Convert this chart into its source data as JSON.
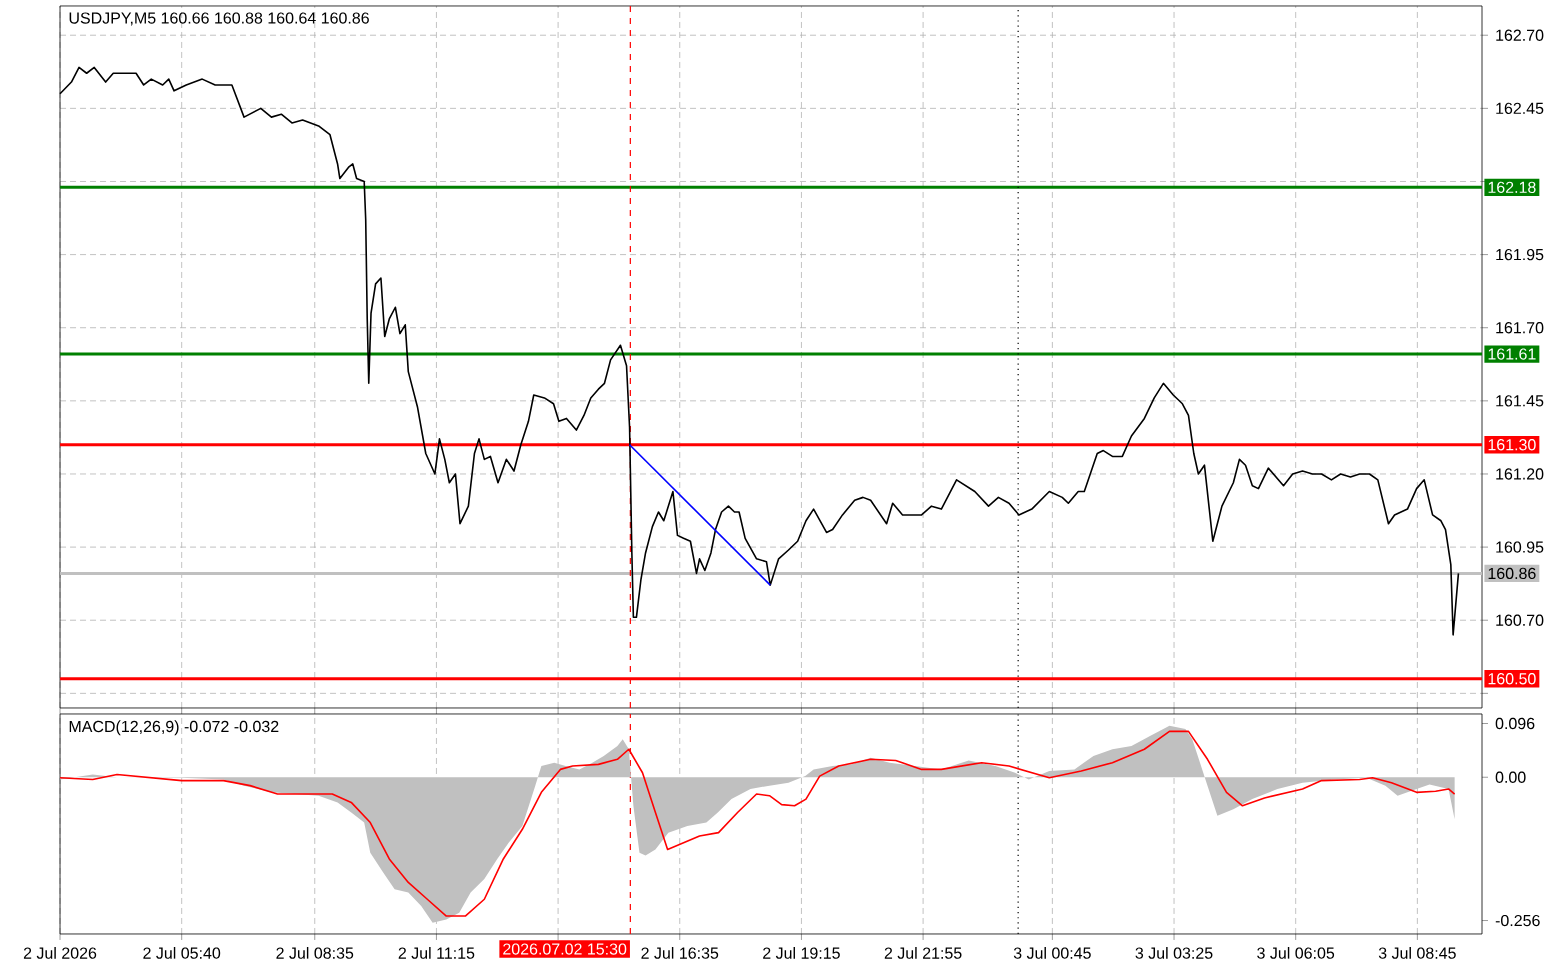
{
  "chart_data": [
    {
      "type": "line",
      "title": "USDJPY,M5  160.66 160.88 160.64 160.86",
      "series": [
        {
          "color": "#000000",
          "x": [
            "2026-07-02T03:00",
            "2026-07-02T03:15",
            "2026-07-02T03:25",
            "2026-07-02T03:35",
            "2026-07-02T03:45",
            "2026-07-02T04:00",
            "2026-07-02T04:10",
            "2026-07-02T04:25",
            "2026-07-02T04:40",
            "2026-07-02T04:50",
            "2026-07-02T05:00",
            "2026-07-02T05:15",
            "2026-07-02T05:23",
            "2026-07-02T05:30",
            "2026-07-02T05:46",
            "2026-07-02T06:07",
            "2026-07-02T06:24",
            "2026-07-02T06:46",
            "2026-07-02T07:02",
            "2026-07-02T07:24",
            "2026-07-02T07:38",
            "2026-07-02T07:51",
            "2026-07-02T08:05",
            "2026-07-02T08:19",
            "2026-07-02T08:40",
            "2026-07-02T08:55",
            "2026-07-02T09:05",
            "2026-07-02T09:08",
            "2026-07-02T09:20",
            "2026-07-02T09:25",
            "2026-07-02T09:30",
            "2026-07-02T09:40",
            "2026-07-02T09:42",
            "2026-07-02T09:44",
            "2026-07-02T09:46",
            "2026-07-02T09:49",
            "2026-07-02T09:55",
            "2026-07-02T10:02",
            "2026-07-02T10:07",
            "2026-07-02T10:13",
            "2026-07-02T10:21",
            "2026-07-02T10:27",
            "2026-07-02T10:34",
            "2026-07-02T10:38",
            "2026-07-02T10:50",
            "2026-07-02T11:01",
            "2026-07-02T11:13",
            "2026-07-02T11:19",
            "2026-07-02T11:26",
            "2026-07-02T11:32",
            "2026-07-02T11:40",
            "2026-07-02T11:46",
            "2026-07-02T11:57",
            "2026-07-02T12:05",
            "2026-07-02T12:11",
            "2026-07-02T12:18",
            "2026-07-02T12:26",
            "2026-07-02T12:36",
            "2026-07-02T12:47",
            "2026-07-02T12:57",
            "2026-07-02T13:06",
            "2026-07-02T13:16",
            "2026-07-02T13:23",
            "2026-07-02T13:37",
            "2026-07-02T13:49",
            "2026-07-02T13:56",
            "2026-07-02T14:06",
            "2026-07-02T14:19",
            "2026-07-02T14:29",
            "2026-07-02T14:38",
            "2026-07-02T14:48",
            "2026-07-02T14:56",
            "2026-07-02T15:04",
            "2026-07-02T15:17",
            "2026-07-02T15:25",
            "2026-07-02T15:29",
            "2026-07-02T15:32",
            "2026-07-02T15:34",
            "2026-07-02T15:38",
            "2026-07-02T15:44",
            "2026-07-02T15:50",
            "2026-07-02T15:59",
            "2026-07-02T16:07",
            "2026-07-02T16:14",
            "2026-07-02T16:26",
            "2026-07-02T16:32",
            "2026-07-02T16:40",
            "2026-07-02T16:49",
            "2026-07-02T16:57",
            "2026-07-02T17:01",
            "2026-07-02T17:08",
            "2026-07-02T17:16",
            "2026-07-02T17:22",
            "2026-07-02T17:30",
            "2026-07-02T17:39",
            "2026-07-02T17:47",
            "2026-07-02T17:53",
            "2026-07-02T18:01",
            "2026-07-02T18:16",
            "2026-07-02T18:29",
            "2026-07-02T18:34",
            "2026-07-02T18:45",
            "2026-07-02T18:58",
            "2026-07-02T19:10",
            "2026-07-02T19:21",
            "2026-07-02T19:31",
            "2026-07-02T19:48",
            "2026-07-02T19:56",
            "2026-07-02T20:09",
            "2026-07-02T20:25",
            "2026-07-02T20:36",
            "2026-07-02T20:46",
            "2026-07-02T21:07",
            "2026-07-02T21:15",
            "2026-07-02T21:28",
            "2026-07-02T21:40",
            "2026-07-02T21:53",
            "2026-07-02T22:06",
            "2026-07-02T22:19",
            "2026-07-02T22:39",
            "2026-07-02T23:03",
            "2026-07-02T23:21",
            "2026-07-02T23:34",
            "2026-07-02T23:48",
            "2026-07-03T00:01",
            "2026-07-03T00:18",
            "2026-07-03T00:41",
            "2026-07-03T00:58",
            "2026-07-03T01:06",
            "2026-07-03T01:19",
            "2026-07-03T01:27",
            "2026-07-03T01:44",
            "2026-07-03T01:52",
            "2026-07-03T02:04",
            "2026-07-03T02:17",
            "2026-07-03T02:29",
            "2026-07-03T02:46",
            "2026-07-03T02:59",
            "2026-07-03T03:11",
            "2026-07-03T03:24",
            "2026-07-03T03:36",
            "2026-07-03T03:44",
            "2026-07-03T03:51",
            "2026-07-03T03:57",
            "2026-07-03T04:05",
            "2026-07-03T04:16",
            "2026-07-03T04:28",
            "2026-07-03T04:43",
            "2026-07-03T04:51",
            "2026-07-03T04:59",
            "2026-07-03T05:08",
            "2026-07-03T05:16",
            "2026-07-03T05:29",
            "2026-07-03T05:39",
            "2026-07-03T05:49",
            "2026-07-03T06:01",
            "2026-07-03T06:14",
            "2026-07-03T06:27",
            "2026-07-03T06:39",
            "2026-07-03T06:52",
            "2026-07-03T07:04",
            "2026-07-03T07:17",
            "2026-07-03T07:29",
            "2026-07-03T07:42",
            "2026-07-03T07:53",
            "2026-07-03T08:07",
            "2026-07-03T08:15",
            "2026-07-03T08:32",
            "2026-07-03T08:44",
            "2026-07-03T08:54",
            "2026-07-03T09:05",
            "2026-07-03T09:16",
            "2026-07-03T09:22",
            "2026-07-03T09:29",
            "2026-07-03T09:32",
            "2026-07-03T09:39"
          ],
          "values": [
            162.5,
            162.54,
            162.59,
            162.57,
            162.59,
            162.54,
            162.57,
            162.57,
            162.57,
            162.53,
            162.55,
            162.53,
            162.55,
            162.51,
            162.53,
            162.55,
            162.53,
            162.53,
            162.42,
            162.45,
            162.42,
            162.43,
            162.4,
            162.41,
            162.39,
            162.36,
            162.26,
            162.21,
            162.25,
            162.26,
            162.21,
            162.2,
            162.07,
            161.73,
            161.51,
            161.75,
            161.85,
            161.87,
            161.67,
            161.73,
            161.77,
            161.68,
            161.71,
            161.55,
            161.43,
            161.27,
            161.2,
            161.32,
            161.25,
            161.17,
            161.2,
            161.03,
            161.09,
            161.27,
            161.32,
            161.25,
            161.26,
            161.17,
            161.25,
            161.21,
            161.3,
            161.38,
            161.47,
            161.46,
            161.44,
            161.38,
            161.39,
            161.35,
            161.4,
            161.46,
            161.49,
            161.51,
            161.59,
            161.64,
            161.57,
            161.36,
            160.93,
            160.71,
            160.71,
            160.84,
            160.93,
            161.02,
            161.07,
            161.04,
            161.14,
            160.99,
            160.98,
            160.97,
            160.86,
            160.91,
            160.87,
            160.93,
            161.01,
            161.07,
            161.09,
            161.07,
            161.07,
            160.98,
            160.91,
            160.9,
            160.82,
            160.91,
            160.94,
            160.97,
            161.04,
            161.08,
            161.0,
            161.01,
            161.06,
            161.11,
            161.12,
            161.11,
            161.03,
            161.1,
            161.06,
            161.06,
            161.06,
            161.09,
            161.08,
            161.18,
            161.14,
            161.09,
            161.12,
            161.1,
            161.06,
            161.08,
            161.14,
            161.12,
            161.1,
            161.14,
            161.14,
            161.27,
            161.28,
            161.26,
            161.26,
            161.33,
            161.39,
            161.46,
            161.51,
            161.47,
            161.44,
            161.4,
            161.27,
            161.2,
            161.23,
            160.97,
            161.09,
            161.17,
            161.25,
            161.23,
            161.16,
            161.15,
            161.22,
            161.19,
            161.16,
            161.2,
            161.21,
            161.2,
            161.2,
            161.18,
            161.2,
            161.19,
            161.2,
            161.2,
            161.18,
            161.03,
            161.06,
            161.08,
            161.15,
            161.18,
            161.06,
            161.04,
            161.01,
            160.89,
            160.65,
            160.86
          ]
        },
        {
          "type": "line",
          "color": "#0000ff",
          "x": [
            "2026-07-02T15:29",
            "2026-07-02T18:34"
          ],
          "values": [
            161.3,
            160.82
          ]
        }
      ],
      "xlim": [
        "2026-07-02T03:00",
        "2026-07-03T10:10"
      ],
      "xticks": [
        {
          "value": "2026-07-02T03:00",
          "label": null
        },
        {
          "value": "2026-07-02T05:40",
          "label": null
        },
        {
          "value": "2026-07-02T08:35",
          "label": null
        },
        {
          "value": "2026-07-02T11:15",
          "label": null
        },
        {
          "value": "2026-07-02T13:55",
          "label": null
        },
        {
          "value": "2026-07-02T16:35",
          "label": null
        },
        {
          "value": "2026-07-02T19:15",
          "label": null
        },
        {
          "value": "2026-07-02T21:55",
          "label": null
        },
        {
          "value": "2026-07-03T00:45",
          "label": null
        },
        {
          "value": "2026-07-03T03:25",
          "label": null
        },
        {
          "value": "2026-07-03T06:05",
          "label": null
        },
        {
          "value": "2026-07-03T08:45",
          "label": null
        }
      ],
      "ylim": [
        160.4,
        162.8
      ],
      "yticks": [
        {
          "value": 160.45,
          "label": null
        },
        {
          "value": 160.7,
          "label": "160.70"
        },
        160.95,
        {
          "value": 161.2,
          "label": "161.20"
        },
        161.45,
        {
          "value": 161.7,
          "label": "161.70"
        },
        161.95,
        {
          "value": 162.2,
          "label": null
        },
        162.45,
        {
          "value": 162.7,
          "label": "162.70"
        }
      ],
      "grid": true,
      "tick_labels": "y",
      "ref_lines": [
        {
          "axis": "y",
          "value": 162.18,
          "label": "162.18",
          "color": "#008000"
        },
        {
          "axis": "y",
          "value": 161.61,
          "label": "161.61",
          "color": "#008000"
        },
        {
          "axis": "y",
          "value": 161.3,
          "label": "161.30",
          "color": "#ff0000"
        },
        {
          "axis": "y",
          "value": 160.5,
          "label": "160.50",
          "color": "#ff0000"
        },
        {
          "axis": "y",
          "value": 160.86,
          "label": "160.86",
          "color": "#c0c0c0"
        },
        {
          "axis": "x",
          "value": "2026-07-02T15:30",
          "color": "#ff0000",
          "line_style": "dashed"
        },
        {
          "axis": "x",
          "value": "2026-07-03T00:00",
          "color": "#000000",
          "line_style": "dotted"
        }
      ]
    },
    {
      "type": "area",
      "title": "MACD(12,26,9) -0.072 -0.032",
      "series": [
        {
          "type": "area",
          "color": "#c0c0c0",
          "x": [
            "2026-07-02T03:00",
            "2026-07-02T03:43",
            "2026-07-02T04:15",
            "2026-07-02T05:40",
            "2026-07-02T06:35",
            "2026-07-02T07:02",
            "2026-07-02T07:38",
            "2026-07-02T08:40",
            "2026-07-02T09:05",
            "2026-07-02T09:23",
            "2026-07-02T09:40",
            "2026-07-02T09:48",
            "2026-07-02T10:05",
            "2026-07-02T10:20",
            "2026-07-02T10:38",
            "2026-07-02T10:55",
            "2026-07-02T11:10",
            "2026-07-02T11:28",
            "2026-07-02T11:45",
            "2026-07-02T12:00",
            "2026-07-02T12:18",
            "2026-07-02T12:35",
            "2026-07-02T12:50",
            "2026-07-02T13:08",
            "2026-07-02T13:25",
            "2026-07-02T13:33",
            "2026-07-02T13:50",
            "2026-07-02T14:05",
            "2026-07-02T14:23",
            "2026-07-02T14:40",
            "2026-07-02T14:55",
            "2026-07-02T15:13",
            "2026-07-02T15:20",
            "2026-07-02T15:28",
            "2026-07-02T15:34",
            "2026-07-02T15:42",
            "2026-07-02T15:50",
            "2026-07-02T16:03",
            "2026-07-02T16:20",
            "2026-07-02T16:45",
            "2026-07-02T17:10",
            "2026-07-02T17:25",
            "2026-07-02T17:43",
            "2026-07-02T18:08",
            "2026-07-02T18:33",
            "2026-07-02T18:58",
            "2026-07-02T19:20",
            "2026-07-02T19:31",
            "2026-07-02T19:56",
            "2026-07-02T20:21",
            "2026-07-02T20:46",
            "2026-07-02T21:11",
            "2026-07-02T21:44",
            "2026-07-02T22:19",
            "2026-07-02T22:55",
            "2026-07-02T23:30",
            "2026-07-02T23:56",
            "2026-07-03T00:14",
            "2026-07-03T00:41",
            "2026-07-03T01:14",
            "2026-07-03T01:39",
            "2026-07-03T02:04",
            "2026-07-03T02:29",
            "2026-07-03T02:54",
            "2026-07-03T03:19",
            "2026-07-03T03:40",
            "2026-07-03T03:49",
            "2026-07-03T04:09",
            "2026-07-03T04:22",
            "2026-07-03T04:43",
            "2026-07-03T05:08",
            "2026-07-03T05:41",
            "2026-07-03T06:14",
            "2026-07-03T06:56",
            "2026-07-03T07:38",
            "2026-07-03T08:03",
            "2026-07-03T08:19",
            "2026-07-03T08:44",
            "2026-07-03T09:01",
            "2026-07-03T09:26",
            "2026-07-03T09:34"
          ],
          "values": [
            -0.004,
            0.005,
            0,
            -0.001,
            -0.004,
            -0.015,
            -0.027,
            -0.033,
            -0.045,
            -0.063,
            -0.081,
            -0.135,
            -0.17,
            -0.2,
            -0.206,
            -0.23,
            -0.26,
            -0.254,
            -0.242,
            -0.206,
            -0.182,
            -0.146,
            -0.117,
            -0.087,
            -0.015,
            0.02,
            0.026,
            0.02,
            0.014,
            0.026,
            0.038,
            0.056,
            0.068,
            0.05,
            -0.051,
            -0.135,
            -0.14,
            -0.129,
            -0.099,
            -0.087,
            -0.081,
            -0.063,
            -0.039,
            -0.021,
            -0.015,
            -0.01,
            0.002,
            0.014,
            0.02,
            0.023,
            0.035,
            0.026,
            0.02,
            0.014,
            0.03,
            0.02,
            0.008,
            -0.004,
            0.011,
            0.014,
            0.038,
            0.05,
            0.056,
            0.074,
            0.092,
            0.086,
            0.068,
            -0.015,
            -0.069,
            -0.057,
            -0.039,
            -0.021,
            -0.01,
            -0.004,
            -0.001,
            -0.015,
            -0.033,
            -0.021,
            -0.013,
            -0.021,
            -0.075
          ]
        },
        {
          "type": "line",
          "color": "#ff0000",
          "x": [
            "2026-07-02T03:00",
            "2026-07-02T03:43",
            "2026-07-02T04:15",
            "2026-07-02T05:40",
            "2026-07-02T06:35",
            "2026-07-02T07:10",
            "2026-07-02T07:46",
            "2026-07-02T08:58",
            "2026-07-02T09:23",
            "2026-07-02T09:48",
            "2026-07-02T10:13",
            "2026-07-02T10:38",
            "2026-07-02T11:03",
            "2026-07-02T11:28",
            "2026-07-02T11:53",
            "2026-07-02T12:18",
            "2026-07-02T12:43",
            "2026-07-02T13:08",
            "2026-07-02T13:33",
            "2026-07-02T13:58",
            "2026-07-02T14:14",
            "2026-07-02T14:48",
            "2026-07-02T15:13",
            "2026-07-02T15:28",
            "2026-07-02T15:46",
            "2026-07-02T16:03",
            "2026-07-02T16:19",
            "2026-07-02T17:01",
            "2026-07-02T17:26",
            "2026-07-02T17:51",
            "2026-07-02T18:16",
            "2026-07-02T18:33",
            "2026-07-02T18:49",
            "2026-07-02T19:06",
            "2026-07-02T19:21",
            "2026-07-02T19:39",
            "2026-07-02T20:04",
            "2026-07-02T20:46",
            "2026-07-02T21:19",
            "2026-07-02T21:53",
            "2026-07-02T22:19",
            "2026-07-02T23:12",
            "2026-07-02T23:48",
            "2026-07-03T00:41",
            "2026-07-03T01:23",
            "2026-07-03T02:04",
            "2026-07-03T02:46",
            "2026-07-03T03:19",
            "2026-07-03T03:44",
            "2026-07-03T04:09",
            "2026-07-03T04:34",
            "2026-07-03T04:55",
            "2026-07-03T05:24",
            "2026-07-03T06:14",
            "2026-07-03T06:39",
            "2026-07-03T07:29",
            "2026-07-03T07:46",
            "2026-07-03T08:11",
            "2026-07-03T08:44",
            "2026-07-03T09:09",
            "2026-07-03T09:26",
            "2026-07-03T09:34"
          ],
          "values": [
            -0.001,
            -0.004,
            0.005,
            -0.006,
            -0.006,
            -0.015,
            -0.03,
            -0.03,
            -0.045,
            -0.081,
            -0.146,
            -0.188,
            -0.218,
            -0.248,
            -0.248,
            -0.218,
            -0.146,
            -0.093,
            -0.027,
            0.014,
            0.02,
            0.023,
            0.032,
            0.05,
            0.008,
            -0.063,
            -0.129,
            -0.105,
            -0.099,
            -0.063,
            -0.03,
            -0.033,
            -0.049,
            -0.051,
            -0.039,
            0.002,
            0.02,
            0.032,
            0.03,
            0.014,
            0.014,
            0.026,
            0.02,
            -0.001,
            0.011,
            0.026,
            0.05,
            0.082,
            0.082,
            0.032,
            -0.027,
            -0.051,
            -0.037,
            -0.021,
            -0.006,
            -0.004,
            -0.001,
            -0.01,
            -0.027,
            -0.025,
            -0.021,
            -0.03
          ]
        }
      ],
      "xlim": [
        "2026-07-02T03:00",
        "2026-07-03T10:10"
      ],
      "xticks": [
        {
          "value": "2026-07-02T03:00",
          "label": "2 Jul 2026"
        },
        {
          "value": "2026-07-02T05:40",
          "label": "2 Jul 05:40"
        },
        {
          "value": "2026-07-02T08:35",
          "label": "2 Jul 08:35"
        },
        {
          "value": "2026-07-02T11:15",
          "label": "2 Jul 11:15"
        },
        {
          "value": "2026-07-02T13:55",
          "label": null
        },
        {
          "value": "2026-07-02T16:35",
          "label": "2 Jul 16:35"
        },
        {
          "value": "2026-07-02T19:15",
          "label": "2 Jul 19:15"
        },
        {
          "value": "2026-07-02T21:55",
          "label": "2 Jul 21:55"
        },
        {
          "value": "2026-07-03T00:45",
          "label": "3 Jul 00:45"
        },
        {
          "value": "2026-07-03T03:25",
          "label": "3 Jul 03:25"
        },
        {
          "value": "2026-07-03T06:05",
          "label": "3 Jul 06:05"
        },
        {
          "value": "2026-07-03T08:45",
          "label": "3 Jul 08:45"
        }
      ],
      "ylim": [
        -0.28,
        0.113
      ],
      "yticks": [
        -0.256,
        {
          "value": 0,
          "label": "0.00"
        },
        0.096
      ],
      "grid": "x",
      "ref_lines": [
        {
          "axis": "x",
          "value": "2026-07-02T15:30",
          "label": "2026.07.02 15:30",
          "color": "#ff0000",
          "line_style": "dashed"
        },
        {
          "axis": "x",
          "value": "2026-07-03T00:00",
          "color": "#000000",
          "line_style": "dotted"
        }
      ]
    }
  ]
}
